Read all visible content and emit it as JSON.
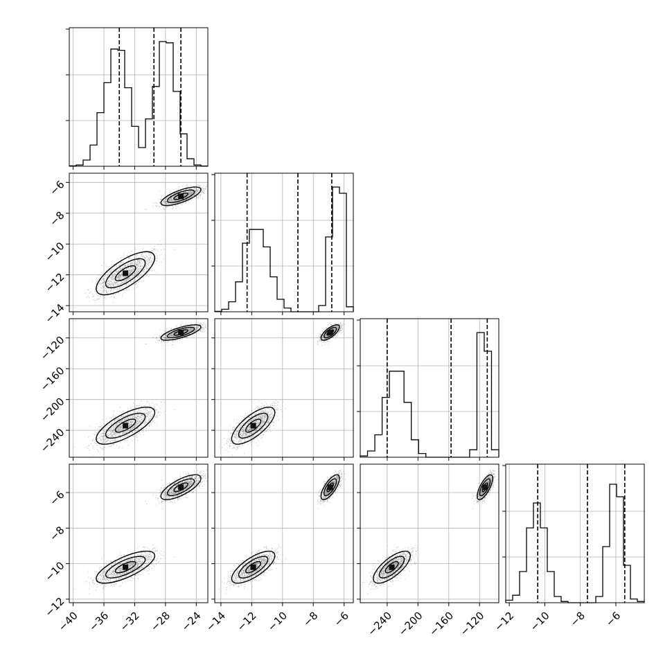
{
  "chart_data": {
    "type": "corner",
    "title": "",
    "n_params": 4,
    "labels": [
      "",
      "",
      "",
      ""
    ],
    "parameters": [
      {
        "range": [
          -40.5,
          -22.5
        ],
        "ticks": [
          -40,
          -36,
          -32,
          -28,
          -24
        ],
        "tick_labels": [
          "−40",
          "−36",
          "−32",
          "−28",
          "−24"
        ],
        "quantiles": [
          -34,
          -29.5,
          -26
        ],
        "hist": [
          0.003,
          0.01,
          0.05,
          0.17,
          0.43,
          0.67,
          0.94,
          0.93,
          0.63,
          0.32,
          0.15,
          0.38,
          0.64,
          1.0,
          0.99,
          0.6,
          0.26,
          0.06,
          0.01,
          0.002
        ],
        "modes": [
          {
            "mean": -33.2,
            "sd": 1.9,
            "w": 0.5
          },
          {
            "mean": -26.0,
            "sd": 1.3,
            "w": 0.5
          }
        ]
      },
      {
        "range": [
          -14.4,
          -5.4
        ],
        "ticks": [
          -14,
          -12,
          -10,
          -8,
          -6
        ],
        "tick_labels": [
          "−14",
          "−12",
          "−10",
          "−8",
          "−6"
        ],
        "quantiles": [
          -12.3,
          -9.0,
          -6.8
        ],
        "hist": [
          0.003,
          0.02,
          0.08,
          0.24,
          0.55,
          0.66,
          0.66,
          0.52,
          0.28,
          0.1,
          0.03,
          0.0,
          0.0,
          0.0,
          0.0,
          0.05,
          0.6,
          1.0,
          0.95,
          0.04
        ],
        "modes": [
          {
            "mean": -11.9,
            "sd": 0.7,
            "w": 0.5
          },
          {
            "mean": -6.9,
            "sd": 0.3,
            "w": 0.5
          }
        ]
      },
      {
        "range": [
          -275,
          -95
        ],
        "ticks": [
          -240,
          -200,
          -160,
          -120
        ],
        "tick_labels": [
          "−240",
          "−200",
          "−160",
          "−120"
        ],
        "quantiles": [
          -240,
          -157,
          -110
        ],
        "hist": [
          0.01,
          0.05,
          0.18,
          0.48,
          0.69,
          0.69,
          0.44,
          0.14,
          0.03,
          0.0,
          0.0,
          0.0,
          0.0,
          0.0,
          0.0,
          0.06,
          1.0,
          0.85,
          0.06
        ],
        "modes": [
          {
            "mean": -234,
            "sd": 12,
            "w": 0.5
          },
          {
            "mean": -113,
            "sd": 5,
            "w": 0.5
          }
        ]
      },
      {
        "range": [
          -12.2,
          -4.4
        ],
        "ticks": [
          -12,
          -10,
          -8,
          -6
        ],
        "tick_labels": [
          "−12",
          "−10",
          "−8",
          "−6"
        ],
        "quantiles": [
          -10.4,
          -7.6,
          -5.5
        ],
        "hist": [
          0.02,
          0.06,
          0.25,
          0.6,
          0.8,
          0.6,
          0.25,
          0.05,
          0.01,
          0.0,
          0.0,
          0.0,
          0.0,
          0.05,
          0.45,
          0.95,
          0.85,
          0.3,
          0.03,
          0.01
        ],
        "modes": [
          {
            "mean": -10.2,
            "sd": 0.45,
            "w": 0.5
          },
          {
            "mean": -5.7,
            "sd": 0.35,
            "w": 0.5
          }
        ]
      }
    ]
  }
}
